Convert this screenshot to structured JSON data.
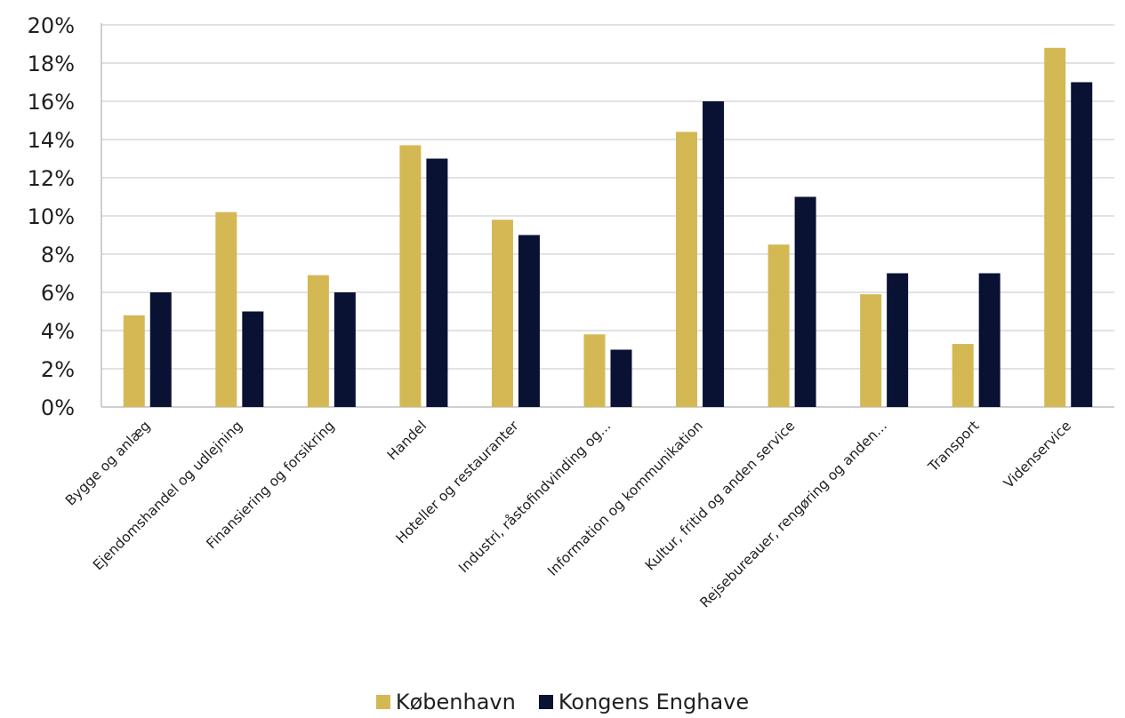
{
  "colors": {
    "kobenhavn": "#D4B854",
    "kongens_enghave": "#0A1233",
    "grid": "#d9d9d9",
    "axis": "#bfbfbf"
  },
  "chart_data": {
    "type": "bar",
    "title": "",
    "xlabel": "",
    "ylabel": "",
    "ylim": [
      0,
      20
    ],
    "yticks": [
      "0%",
      "2%",
      "4%",
      "6%",
      "8%",
      "10%",
      "12%",
      "14%",
      "16%",
      "18%",
      "20%"
    ],
    "grid": true,
    "legend_position": "bottom",
    "categories": [
      "Bygge og anlæg",
      "Ejendomshandel og udlejning",
      "Finansiering og forsikring",
      "Handel",
      "Hoteller og restauranter",
      "Industri, råstofindvinding og...",
      "Information og kommunikation",
      "Kultur, fritid og anden service",
      "Rejsebureauer, rengøring og anden...",
      "Transport",
      "Videnservice"
    ],
    "series": [
      {
        "name": "København",
        "color": "#D4B854",
        "values": [
          4.8,
          10.2,
          6.9,
          13.7,
          9.8,
          3.8,
          14.4,
          8.5,
          5.9,
          3.3,
          18.8
        ]
      },
      {
        "name": "Kongens Enghave",
        "color": "#0A1233",
        "values": [
          6,
          5,
          6,
          13,
          9,
          3,
          16,
          11,
          7,
          7,
          17
        ]
      }
    ]
  }
}
